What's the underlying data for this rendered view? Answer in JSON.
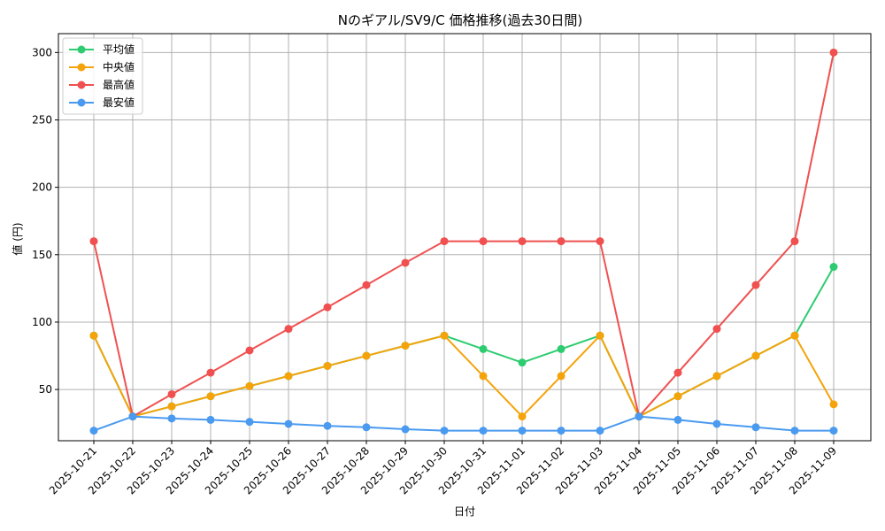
{
  "chart_data": {
    "type": "line",
    "title": "Nのギアル/SV9/C 価格推移(過去30日間)",
    "xlabel": "日付",
    "ylabel": "値 (円)",
    "categories": [
      "2025-10-21",
      "2025-10-22",
      "2025-10-23",
      "2025-10-24",
      "2025-10-25",
      "2025-10-26",
      "2025-10-27",
      "2025-10-28",
      "2025-10-29",
      "2025-10-30",
      "2025-10-31",
      "2025-11-01",
      "2025-11-02",
      "2025-11-03",
      "2025-11-04",
      "2025-11-05",
      "2025-11-06",
      "2025-11-07",
      "2025-11-08",
      "2025-11-09"
    ],
    "ylim": [
      12,
      314
    ],
    "yticks": [
      50,
      100,
      150,
      200,
      250,
      300
    ],
    "grid": true,
    "legend_position": "top-left",
    "series": [
      {
        "name": "平均値",
        "color": "#2ecc71",
        "values": [
          90,
          30,
          37.5,
          45,
          52.5,
          60,
          67.5,
          75,
          82.5,
          90,
          80,
          70,
          80,
          90,
          30,
          45,
          60,
          75,
          90,
          141
        ]
      },
      {
        "name": "中央値",
        "color": "#f5a30b",
        "values": [
          90,
          30,
          37.5,
          45,
          52.5,
          60,
          67.5,
          75,
          82.5,
          90,
          60,
          30,
          60,
          90,
          30,
          45,
          60,
          75,
          90,
          39
        ]
      },
      {
        "name": "最高値",
        "color": "#f05050",
        "values": [
          160,
          30,
          46.5,
          62.5,
          79,
          95,
          111,
          127.5,
          144,
          160,
          160,
          160,
          160,
          160,
          30,
          62.5,
          95,
          127.5,
          160,
          300
        ]
      },
      {
        "name": "最安値",
        "color": "#4a9af0",
        "values": [
          19.5,
          30,
          28.5,
          27.5,
          26,
          24.5,
          23,
          22,
          20.5,
          19.5,
          19.5,
          19.5,
          19.5,
          19.5,
          30,
          27.5,
          24.5,
          22,
          19.5,
          19.5
        ]
      }
    ]
  }
}
